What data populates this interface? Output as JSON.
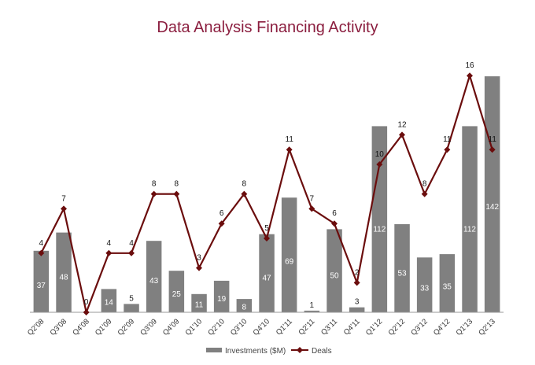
{
  "chart_data": {
    "type": "bar+line",
    "title": "Data Analysis Financing Activity",
    "categories": [
      "Q2'08",
      "Q3'08",
      "Q4'08",
      "Q1'09",
      "Q2'09",
      "Q3'09",
      "Q4'09",
      "Q1'10",
      "Q2'10",
      "Q3'10",
      "Q4'10",
      "Q1'11",
      "Q2'11",
      "Q3'11",
      "Q4'11",
      "Q1'12",
      "Q2'12",
      "Q3'12",
      "Q4'12",
      "Q1'13",
      "Q2'13"
    ],
    "series": [
      {
        "name": "Investments ($M)",
        "type": "bar",
        "color": "#808080",
        "values": [
          37,
          48,
          0,
          14,
          5,
          43,
          25,
          11,
          19,
          8,
          47,
          69,
          1,
          50,
          3,
          112,
          53,
          33,
          35,
          112,
          142
        ]
      },
      {
        "name": "Deals",
        "type": "line",
        "color": "#6b0d0d",
        "values": [
          4,
          7,
          0,
          4,
          4,
          8,
          8,
          3,
          6,
          8,
          5,
          11,
          7,
          6,
          2,
          10,
          12,
          8,
          11,
          16,
          11
        ]
      }
    ],
    "grid": false,
    "legend_position": "bottom"
  }
}
